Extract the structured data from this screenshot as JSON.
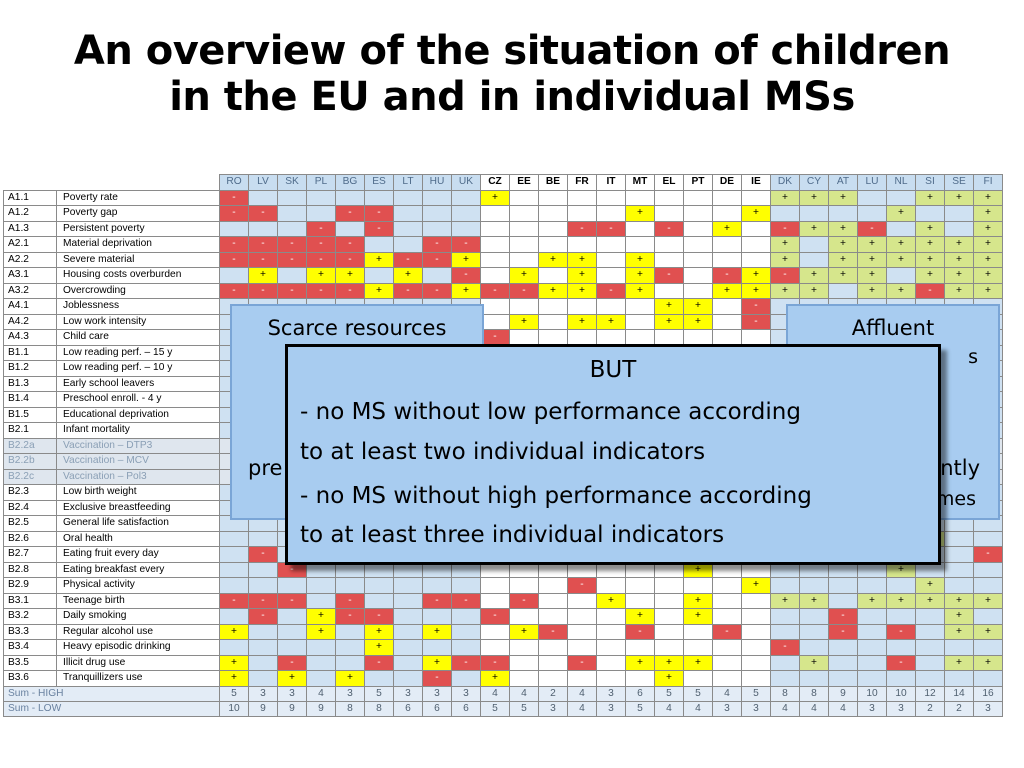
{
  "title_line1": "An overview of the situation of children",
  "title_line2": "in the EU and in individual MSs",
  "countries": [
    "RO",
    "LV",
    "SK",
    "PL",
    "BG",
    "ES",
    "LT",
    "HU",
    "UK",
    "CZ",
    "EE",
    "BE",
    "FR",
    "IT",
    "MT",
    "EL",
    "PT",
    "DE",
    "IE",
    "DK",
    "CY",
    "AT",
    "LU",
    "NL",
    "SI",
    "SE",
    "FI"
  ],
  "rows": [
    {
      "code": "A1.1",
      "name": "Poverty rate",
      "cells": [
        "-",
        "",
        "",
        "",
        "",
        "",
        "",
        "",
        "",
        "+",
        "",
        "",
        "",
        "",
        "",
        "",
        "",
        "",
        "",
        "+",
        "+",
        "+",
        "",
        "",
        "+",
        "+",
        "+"
      ]
    },
    {
      "code": "A1.2",
      "name": "Poverty gap",
      "cells": [
        "-",
        "-",
        "",
        "",
        "-",
        "-",
        "",
        "",
        "",
        "",
        "",
        "",
        "",
        "",
        "+",
        "",
        "",
        "",
        "+",
        "",
        "",
        "",
        "",
        "+",
        "",
        "",
        "+"
      ]
    },
    {
      "code": "A1.3",
      "name": "Persistent poverty",
      "cells": [
        "",
        "",
        "",
        "-",
        "",
        "-",
        "",
        "",
        "",
        "",
        "",
        "",
        "-",
        "-",
        "",
        "-",
        "",
        "+",
        "",
        "-",
        "+",
        "+",
        "-",
        "",
        "+",
        "",
        "+"
      ]
    },
    {
      "code": "A2.1",
      "name": "Material deprivation",
      "cells": [
        "-",
        "-",
        "-",
        "-",
        "-",
        "",
        "",
        "-",
        "-",
        "",
        "",
        "",
        "",
        "",
        "",
        "",
        "",
        "",
        "",
        "+",
        "",
        "+",
        "+",
        "+",
        "+",
        "+",
        "+"
      ]
    },
    {
      "code": "A2.2",
      "name": "Severe material",
      "cells": [
        "-",
        "-",
        "-",
        "-",
        "-",
        "+",
        "-",
        "-",
        "+",
        "",
        "",
        "+",
        "+",
        "",
        "+",
        "",
        "",
        "",
        "",
        "+",
        "",
        "+",
        "+",
        "+",
        "+",
        "+",
        "+"
      ]
    },
    {
      "code": "A3.1",
      "name": "Housing costs overburden",
      "cells": [
        "",
        "+",
        "",
        "+",
        "+",
        "",
        "+",
        "",
        "-",
        "",
        "+",
        "",
        "+",
        "",
        "+",
        "-",
        "",
        "-",
        "+",
        "-",
        "+",
        "+",
        "+",
        "",
        "+",
        "+",
        "+"
      ]
    },
    {
      "code": "A3.2",
      "name": "Overcrowding",
      "cells": [
        "-",
        "-",
        "-",
        "-",
        "-",
        "+",
        "-",
        "-",
        "+",
        "-",
        "-",
        "+",
        "+",
        "-",
        "+",
        "",
        "",
        "+",
        "+",
        "+",
        "+",
        "",
        "+",
        "+",
        "-",
        "+",
        "+"
      ]
    },
    {
      "code": "A4.1",
      "name": "Joblessness",
      "cells": [
        "",
        "",
        "",
        "",
        "",
        "",
        "",
        "",
        "",
        "",
        "",
        "",
        "",
        "",
        "",
        "+",
        "+",
        "",
        "-",
        "",
        "",
        "",
        "",
        "",
        "",
        "",
        ""
      ]
    },
    {
      "code": "A4.2",
      "name": "Low work intensity",
      "cells": [
        "",
        "",
        "",
        "",
        "",
        "",
        "",
        "",
        "",
        "",
        "+",
        "",
        "+",
        "+",
        "",
        "+",
        "+",
        "",
        "-",
        "",
        "",
        "",
        "",
        "",
        "",
        "",
        ""
      ]
    },
    {
      "code": "A4.3",
      "name": "Child care",
      "cells": [
        "",
        "",
        "",
        "",
        "",
        "",
        "",
        "",
        "",
        "-",
        "",
        "",
        "",
        "",
        "",
        "",
        "",
        "",
        "",
        "",
        "",
        "",
        "",
        "",
        "",
        "",
        ""
      ]
    },
    {
      "code": "B1.1",
      "name": "Low reading perf. – 15 y",
      "cells": [
        "",
        "",
        "",
        "",
        "",
        "",
        "",
        "",
        "",
        "",
        "",
        "",
        "",
        "",
        "",
        "",
        "",
        "",
        "",
        "",
        "",
        "",
        "",
        "",
        "",
        "",
        ""
      ]
    },
    {
      "code": "B1.2",
      "name": "Low reading perf. – 10 y",
      "cells": [
        "",
        "",
        "",
        "",
        "",
        "",
        "",
        "",
        "",
        "",
        "",
        "",
        "",
        "",
        "",
        "",
        "",
        "",
        "",
        "",
        "",
        "",
        "",
        "",
        "",
        "",
        ""
      ]
    },
    {
      "code": "B1.3",
      "name": "Early school leavers",
      "cells": [
        "",
        "",
        "",
        "",
        "",
        "",
        "",
        "",
        "",
        "",
        "",
        "",
        "",
        "",
        "",
        "",
        "",
        "",
        "",
        "",
        "",
        "",
        "",
        "",
        "",
        "",
        ""
      ]
    },
    {
      "code": "B1.4",
      "name": "Preschool enroll. - 4 y",
      "cells": [
        "",
        "",
        "",
        "",
        "",
        "",
        "",
        "",
        "",
        "",
        "",
        "",
        "",
        "",
        "",
        "",
        "",
        "",
        "",
        "",
        "",
        "",
        "",
        "",
        "",
        "",
        ""
      ]
    },
    {
      "code": "B1.5",
      "name": "Educational deprivation",
      "cells": [
        "",
        "",
        "",
        "",
        "",
        "",
        "",
        "",
        "",
        "",
        "",
        "",
        "",
        "",
        "",
        "",
        "",
        "",
        "",
        "",
        "",
        "",
        "",
        "",
        "",
        "",
        ""
      ]
    },
    {
      "code": "B2.1",
      "name": "Infant mortality",
      "cells": [
        "",
        "",
        "",
        "",
        "",
        "",
        "",
        "",
        "",
        "",
        "",
        "",
        "",
        "",
        "",
        "",
        "",
        "",
        "",
        "",
        "",
        "",
        "",
        "",
        "",
        "",
        ""
      ]
    },
    {
      "code": "B2.2a",
      "name": "Vaccination – DTP3",
      "cells": [
        "",
        "",
        "",
        "",
        "",
        "",
        "",
        "",
        "",
        "",
        "",
        "",
        "",
        "",
        "",
        "",
        "",
        "",
        "",
        "",
        "",
        "",
        "",
        "",
        "",
        "",
        ""
      ]
    },
    {
      "code": "B2.2b",
      "name": "Vaccination – MCV",
      "cells": [
        "",
        "",
        "",
        "",
        "",
        "",
        "",
        "",
        "",
        "",
        "",
        "",
        "",
        "",
        "",
        "",
        "",
        "",
        "",
        "",
        "",
        "",
        "",
        "",
        "",
        "",
        ""
      ]
    },
    {
      "code": "B2.2c",
      "name": "Vaccination – Pol3",
      "cells": [
        "",
        "",
        "",
        "",
        "",
        "",
        "",
        "",
        "",
        "",
        "",
        "",
        "",
        "",
        "",
        "",
        "",
        "",
        "",
        "",
        "",
        "",
        "",
        "",
        "",
        "",
        ""
      ]
    },
    {
      "code": "B2.3",
      "name": "Low birth weight",
      "cells": [
        "",
        "",
        "",
        "",
        "",
        "",
        "",
        "",
        "",
        "",
        "",
        "",
        "",
        "",
        "",
        "",
        "",
        "",
        "",
        "",
        "",
        "",
        "",
        "",
        "",
        "",
        ""
      ]
    },
    {
      "code": "B2.4",
      "name": "Exclusive breastfeeding",
      "cells": [
        "",
        "",
        "",
        "",
        "",
        "",
        "",
        "",
        "",
        "",
        "",
        "",
        "",
        "",
        "",
        "",
        "",
        "",
        "",
        "",
        "",
        "",
        "",
        "",
        "",
        "",
        ""
      ]
    },
    {
      "code": "B2.5",
      "name": "General life satisfaction",
      "cells": [
        "",
        "",
        "",
        "",
        "",
        "",
        "",
        "",
        "",
        "",
        "",
        "",
        "",
        "",
        "",
        "",
        "",
        "",
        "",
        "",
        "",
        "",
        "",
        "",
        "",
        "",
        ""
      ]
    },
    {
      "code": "B2.6",
      "name": "Oral health",
      "cells": [
        "",
        "",
        "",
        "",
        "",
        "",
        "",
        "",
        "",
        "",
        "",
        "",
        "",
        "",
        "",
        "",
        "",
        "",
        "",
        "",
        "",
        "",
        "",
        "",
        "+",
        "",
        ""
      ]
    },
    {
      "code": "B2.7",
      "name": "Eating fruit every day",
      "cells": [
        "",
        "-",
        "",
        "",
        "",
        "",
        "",
        "",
        "",
        "",
        "",
        "",
        "",
        "",
        "",
        "",
        "",
        "",
        "",
        "",
        "",
        "",
        "",
        "",
        "",
        "",
        "-"
      ]
    },
    {
      "code": "B2.8",
      "name": "Eating breakfast every",
      "cells": [
        "",
        "",
        "-",
        "",
        "",
        "",
        "",
        "",
        "",
        "",
        "",
        "",
        "",
        "",
        "",
        "",
        "+",
        "",
        "",
        "",
        "",
        "",
        "",
        "+",
        "",
        "",
        ""
      ]
    },
    {
      "code": "B2.9",
      "name": "Physical activity",
      "cells": [
        "",
        "",
        "",
        "",
        "",
        "",
        "",
        "",
        "",
        "",
        "",
        "",
        "-",
        "",
        "",
        "",
        "",
        "",
        "+",
        "",
        "",
        "",
        "",
        "",
        "+",
        "",
        ""
      ]
    },
    {
      "code": "B3.1",
      "name": "Teenage birth",
      "cells": [
        "-",
        "-",
        "-",
        "",
        "-",
        "",
        "",
        "-",
        "-",
        "",
        "-",
        "",
        "",
        "+",
        "",
        "",
        "+",
        "",
        "",
        "+",
        "+",
        "",
        "+",
        "+",
        "+",
        "+",
        "+"
      ]
    },
    {
      "code": "B3.2",
      "name": "Daily smoking",
      "cells": [
        "",
        "-",
        "",
        "+",
        "-",
        "-",
        "",
        "",
        "",
        "-",
        "",
        "",
        "",
        "",
        "+",
        "",
        "+",
        "",
        "",
        "",
        "",
        "-",
        "",
        "",
        "",
        "+",
        ""
      ]
    },
    {
      "code": "B3.3",
      "name": "Regular alcohol use",
      "cells": [
        "+",
        "",
        "",
        "+",
        "",
        "+",
        "",
        "+",
        "",
        "",
        "+",
        "-",
        "",
        "",
        "-",
        "",
        "",
        "-",
        "",
        "",
        "",
        "-",
        "",
        "-",
        "",
        "+",
        "+"
      ]
    },
    {
      "code": "B3.4",
      "name": "Heavy episodic drinking",
      "cells": [
        "",
        "",
        "",
        "",
        "",
        "+",
        "",
        "",
        "",
        "",
        "",
        "",
        "",
        "",
        "",
        "",
        "",
        "",
        "",
        "-",
        "",
        "",
        "",
        "",
        "",
        "",
        ""
      ]
    },
    {
      "code": "B3.5",
      "name": "Illicit drug use",
      "cells": [
        "+",
        "",
        "-",
        "",
        "",
        "-",
        "",
        "+",
        "-",
        "-",
        "",
        "",
        "-",
        "",
        "+",
        "+",
        "+",
        "",
        "",
        "",
        "+",
        "",
        "",
        "-",
        "",
        "+",
        "+"
      ]
    },
    {
      "code": "B3.6",
      "name": "Tranquillizers use",
      "cells": [
        "+",
        "",
        "+",
        "",
        "+",
        "",
        "",
        "-",
        "",
        "+",
        "",
        "",
        "",
        "",
        "",
        "+",
        "",
        "",
        "",
        "",
        "",
        "",
        "",
        "",
        "",
        "",
        ""
      ]
    }
  ],
  "sums": [
    {
      "label": "Sum - HIGH",
      "cells": [
        "5",
        "3",
        "3",
        "4",
        "3",
        "5",
        "3",
        "3",
        "3",
        "4",
        "4",
        "2",
        "4",
        "3",
        "6",
        "5",
        "5",
        "4",
        "5",
        "8",
        "8",
        "9",
        "10",
        "10",
        "12",
        "14",
        "16"
      ]
    },
    {
      "label": "Sum - LOW",
      "cells": [
        "10",
        "9",
        "9",
        "9",
        "8",
        "8",
        "6",
        "6",
        "6",
        "5",
        "5",
        "3",
        "4",
        "3",
        "5",
        "4",
        "4",
        "3",
        "3",
        "4",
        "4",
        "4",
        "3",
        "3",
        "2",
        "2",
        "3"
      ]
    }
  ],
  "box_left": {
    "line1": "Scarce resources",
    "line2": "pre"
  },
  "box_right": {
    "line1": "Affluent",
    "line2": "ntly",
    "line3": "mes",
    "line4": "s"
  },
  "box_center": {
    "heading": "BUT",
    "line1": "- no MS without low performance according",
    "line2": "to at least two individual indicators",
    "line3": "- no MS without high performance according",
    "line4": "to at least three individual indicators"
  },
  "colors": {
    "low": "#e05050",
    "high": "#ffff00",
    "group1": "#cfe1f2",
    "group2": "#ffffff",
    "group3_high": "#d6e68c",
    "box": "#a8ccf0"
  }
}
